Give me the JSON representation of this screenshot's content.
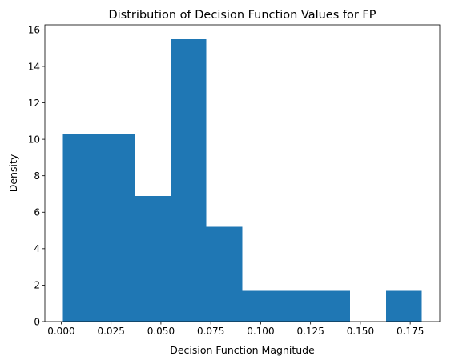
{
  "chart_data": {
    "type": "bar",
    "title": "Distribution of Decision Function Values for FP",
    "xlabel": "Decision Function Magnitude",
    "ylabel": "Density",
    "bin_edges": [
      0.0008,
      0.0188,
      0.0368,
      0.0548,
      0.0728,
      0.0908,
      0.1088,
      0.1268,
      0.1448,
      0.1628,
      0.1808
    ],
    "values": [
      10.3,
      10.3,
      6.9,
      15.5,
      5.2,
      1.7,
      1.7,
      1.7,
      0.0,
      1.7
    ],
    "xlim": [
      -0.0082,
      0.1898
    ],
    "ylim": [
      0,
      16.28
    ],
    "xticks": [
      0.0,
      0.025,
      0.05,
      0.075,
      0.1,
      0.125,
      0.15,
      0.175
    ],
    "xtick_labels": [
      "0.000",
      "0.025",
      "0.050",
      "0.075",
      "0.100",
      "0.125",
      "0.150",
      "0.175"
    ],
    "yticks": [
      0,
      2,
      4,
      6,
      8,
      10,
      12,
      14,
      16
    ],
    "ytick_labels": [
      "0",
      "2",
      "4",
      "6",
      "8",
      "10",
      "12",
      "14",
      "16"
    ],
    "bar_color": "#1f77b4",
    "grid": false,
    "legend": "none"
  }
}
